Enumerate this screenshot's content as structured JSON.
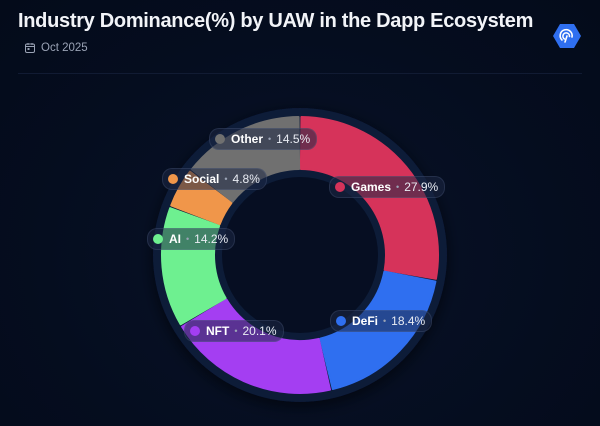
{
  "header": {
    "title": "Industry Dominance(%) by UAW in the Dapp Ecosystem",
    "date": "Oct 2025",
    "calendar_icon": "calendar-icon",
    "logo_icon": "hexagon-fingerprint-logo"
  },
  "colors": {
    "background": "#050d1f",
    "ring": "#0c1a38",
    "games": "#d6335a",
    "defi": "#2f6ff0",
    "nft": "#a43ef2",
    "ai": "#6ef090",
    "social": "#f0964a",
    "other": "#707070",
    "logo": "#2f6ff0"
  },
  "labels": [
    {
      "name": "Games",
      "value": "27.9%"
    },
    {
      "name": "DeFi",
      "value": "18.4%"
    },
    {
      "name": "NFT",
      "value": "20.1%"
    },
    {
      "name": "AI",
      "value": "14.2%"
    },
    {
      "name": "Social",
      "value": "4.8%"
    },
    {
      "name": "Other",
      "value": "14.5%"
    }
  ],
  "chart_data": {
    "type": "pie",
    "subtype": "donut",
    "title": "Industry Dominance(%) by UAW in the Dapp Ecosystem",
    "subtitle": "Oct 2025",
    "categories": [
      "Games",
      "DeFi",
      "NFT",
      "AI",
      "Social",
      "Other"
    ],
    "values": [
      27.9,
      18.4,
      20.1,
      14.2,
      4.8,
      14.5
    ],
    "unit": "%",
    "colors": [
      "#d6335a",
      "#2f6ff0",
      "#a43ef2",
      "#6ef090",
      "#f0964a",
      "#707070"
    ],
    "start_angle": "top (12 o'clock), clockwise",
    "legend": "inline labels on segments"
  }
}
